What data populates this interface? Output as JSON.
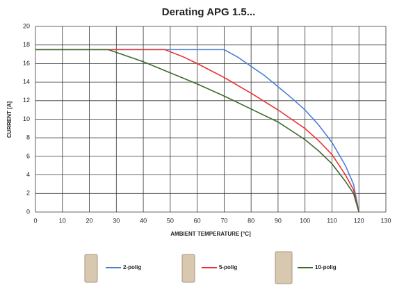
{
  "chart_data": {
    "type": "line",
    "title": "Derating APG 1.5...",
    "xlabel": "AMBIENT TEMPERATURE [°C]",
    "ylabel": "CURRENT [A]",
    "xlim": [
      0,
      130
    ],
    "xticks": [
      0,
      10,
      20,
      30,
      40,
      50,
      60,
      70,
      80,
      90,
      100,
      110,
      120,
      130
    ],
    "ylim": [
      0,
      20
    ],
    "yticks": [
      0,
      2,
      4,
      6,
      8,
      10,
      12,
      14,
      16,
      18,
      20
    ],
    "grid": true,
    "legend": "bottom",
    "series": [
      {
        "name": "2-polig",
        "color": "#4a7fd8",
        "x": [
          0,
          70,
          75,
          80,
          85,
          90,
          95,
          100,
          105,
          110,
          115,
          118,
          120
        ],
        "values": [
          17.5,
          17.5,
          16.7,
          15.7,
          14.7,
          13.5,
          12.3,
          11,
          9.4,
          7.5,
          5,
          3,
          0
        ]
      },
      {
        "name": "5-polig",
        "color": "#e8302e",
        "x": [
          0,
          48,
          55,
          60,
          70,
          80,
          90,
          100,
          105,
          110,
          115,
          118,
          120
        ],
        "values": [
          17.5,
          17.5,
          16.7,
          16,
          14.5,
          12.8,
          11,
          9,
          7.7,
          6.2,
          4,
          2.4,
          0
        ]
      },
      {
        "name": "10-polig",
        "color": "#3a6a2a",
        "x": [
          0,
          27,
          30,
          40,
          50,
          60,
          70,
          80,
          90,
          100,
          105,
          110,
          115,
          118,
          120
        ],
        "values": [
          17.5,
          17.5,
          17.2,
          16.2,
          15,
          13.8,
          12.5,
          11.1,
          9.7,
          7.8,
          6.6,
          5.2,
          3.3,
          2,
          0
        ]
      }
    ]
  }
}
